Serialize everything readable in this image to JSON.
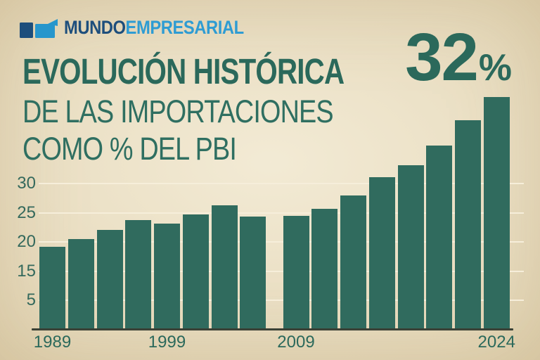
{
  "logo": {
    "brand_part1": "MUNDO",
    "brand_part2": "EMPRESARIAL"
  },
  "title": {
    "line1": "EVOLUCIÓN HISTÓRICA",
    "line2": "DE LAS IMPORTACIONES",
    "line3": "COMO % DEL PBI"
  },
  "highlight": {
    "value": "32",
    "unit": "%"
  },
  "colors": {
    "background": "#ece1c6",
    "bar": "#306b5e",
    "teal_text": "#2b695b",
    "axis_label": "#34695c",
    "logo_navy": "#1d4e7c",
    "logo_blue": "#2e9cd3",
    "gridline": "#f6eeda",
    "axis_line": "#3a4136"
  },
  "chart_data": {
    "type": "bar",
    "title": "EVOLUCIÓN HISTÓRICA DE LAS IMPORTACIONES COMO % DEL PBI",
    "highlight_annotation": "32%",
    "values": [
      19,
      20.4,
      22,
      23.7,
      23,
      24.6,
      26.2,
      24.3,
      24.4,
      25.6,
      27.9,
      31.1,
      33.2,
      36.6,
      41,
      45
    ],
    "y_tick_labels": [
      "30",
      "25",
      "20",
      "15",
      "5"
    ],
    "x_ticks": [
      {
        "label": "1989",
        "bar_index": 0
      },
      {
        "label": "1999",
        "bar_index": 4
      },
      {
        "label": "2009",
        "bar_index": 8
      },
      {
        "label": "2024",
        "bar_index": 15
      }
    ],
    "grid": true,
    "legend": false
  }
}
